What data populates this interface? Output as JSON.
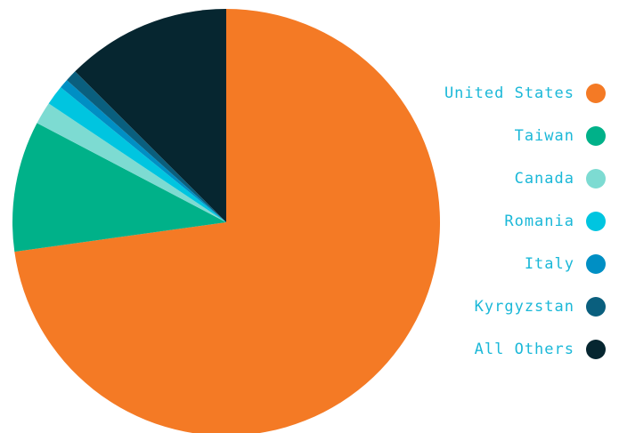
{
  "chart_data": {
    "type": "pie",
    "categories": [
      "United States",
      "Taiwan",
      "Canada",
      "Romania",
      "Italy",
      "Kyrgyzstan",
      "All Others"
    ],
    "values": [
      72.8,
      9.9,
      1.7,
      1.5,
      0.7,
      0.9,
      12.5
    ],
    "colors": [
      "#f47a25",
      "#00b189",
      "#7ddbd2",
      "#00c5e0",
      "#008fc4",
      "#0a5f7e",
      "#062630"
    ],
    "legend": "right"
  }
}
